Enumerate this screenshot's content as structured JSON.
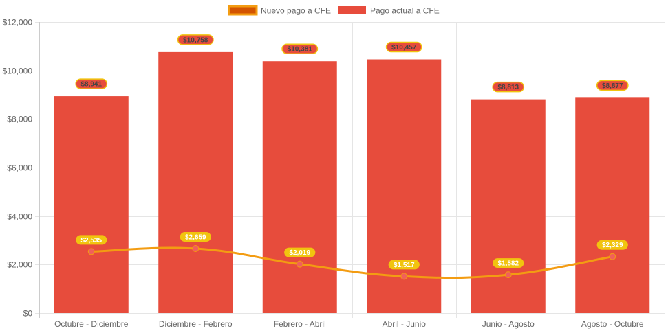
{
  "chart_data": {
    "type": "bar",
    "title": "",
    "xlabel": "",
    "ylabel": "",
    "ylim": [
      0,
      12000
    ],
    "yticks": [
      0,
      2000,
      4000,
      6000,
      8000,
      10000,
      12000
    ],
    "ytick_labels": [
      "$0",
      "$2,000",
      "$4,000",
      "$6,000",
      "$8,000",
      "$10,000",
      "$12,000"
    ],
    "grid": true,
    "legend_position": "top-center",
    "categories": [
      "Octubre - Diciembre",
      "Diciembre - Febrero",
      "Febrero - Abril",
      "Abril - Junio",
      "Junio - Agosto",
      "Agosto - Octubre"
    ],
    "series": [
      {
        "name": "Nuevo pago a CFE",
        "type": "line",
        "values": [
          2535,
          2659,
          2019,
          1517,
          1582,
          2329
        ],
        "data_labels": [
          "$2,535",
          "$2,659",
          "$2,019",
          "$1,517",
          "$1,582",
          "$2,329"
        ],
        "color": "#f39c12",
        "legend_fill": "#d35400",
        "point_color": "#f1605a",
        "label_bg": "#f1c40f"
      },
      {
        "name": "Pago actual a CFE",
        "type": "bar",
        "values": [
          8941,
          10758,
          10381,
          10457,
          8813,
          8877
        ],
        "data_labels": [
          "$8,941",
          "$10,758",
          "$10,381",
          "$10,457",
          "$8,813",
          "$8,877"
        ],
        "color": "#e74c3c",
        "label_bg": "#e74c3c",
        "label_border": "#f1c40f"
      }
    ]
  }
}
